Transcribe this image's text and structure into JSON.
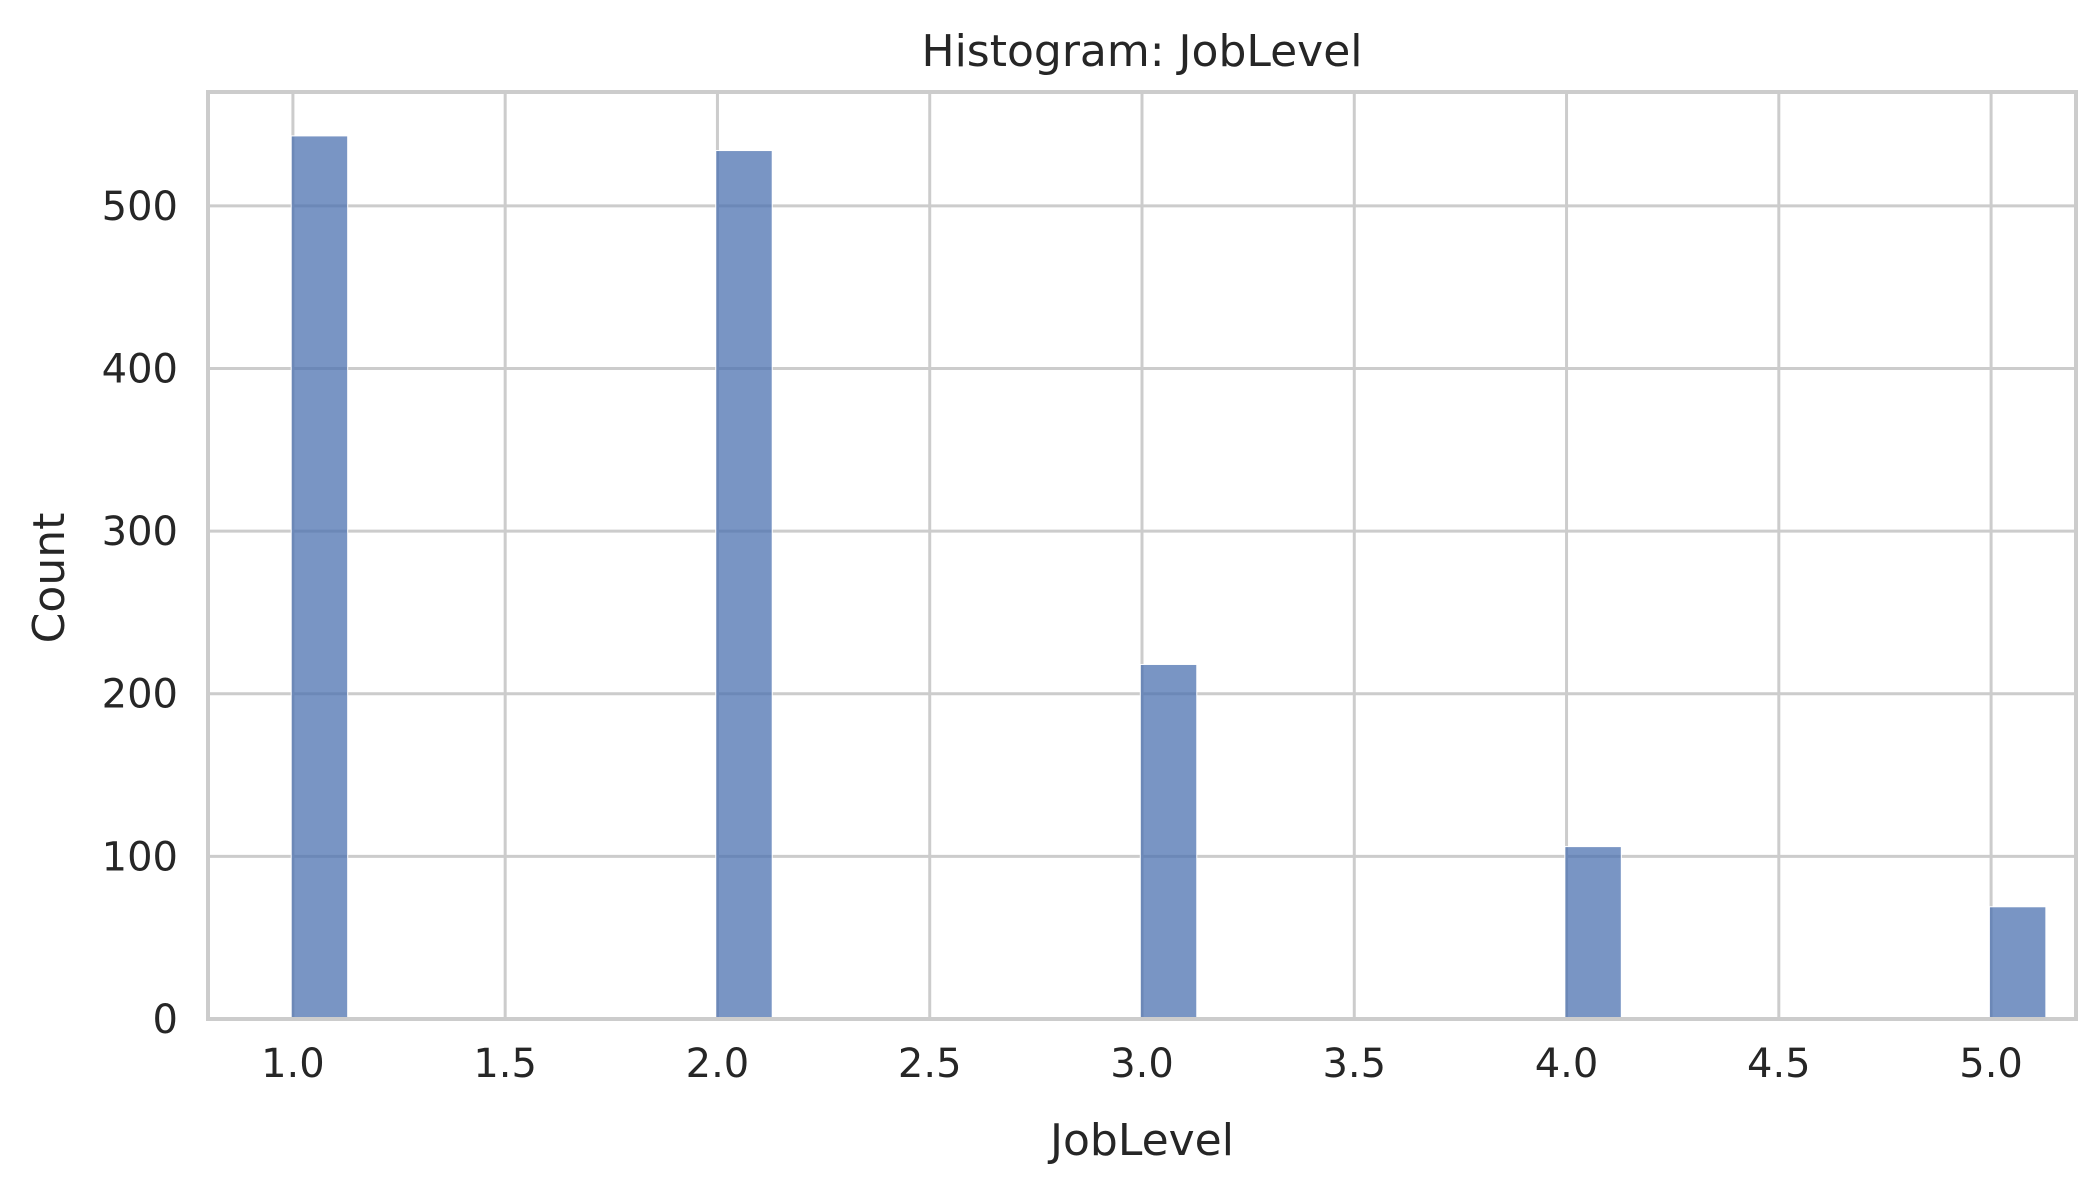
{
  "chart_data": {
    "type": "bar",
    "subtype": "histogram",
    "title": "Histogram: JobLevel",
    "xlabel": "JobLevel",
    "ylabel": "Count",
    "x": [
      1,
      2,
      3,
      4,
      5
    ],
    "values": [
      543,
      534,
      218,
      106,
      69
    ],
    "bin_width": 0.133,
    "xlim": [
      0.8,
      5.2
    ],
    "ylim": [
      0,
      570
    ],
    "xticks": [
      1.0,
      1.5,
      2.0,
      2.5,
      3.0,
      3.5,
      4.0,
      4.5,
      5.0
    ],
    "xtick_labels": [
      "1.0",
      "1.5",
      "2.0",
      "2.5",
      "3.0",
      "3.5",
      "4.0",
      "4.5",
      "5.0"
    ],
    "yticks": [
      0,
      100,
      200,
      300,
      400,
      500
    ],
    "ytick_labels": [
      "0",
      "100",
      "200",
      "300",
      "400",
      "500"
    ],
    "grid": true,
    "bar_color": "#4c72b0",
    "bar_opacity": 0.75,
    "grid_color": "#cccccc",
    "text_color": "#262626"
  }
}
